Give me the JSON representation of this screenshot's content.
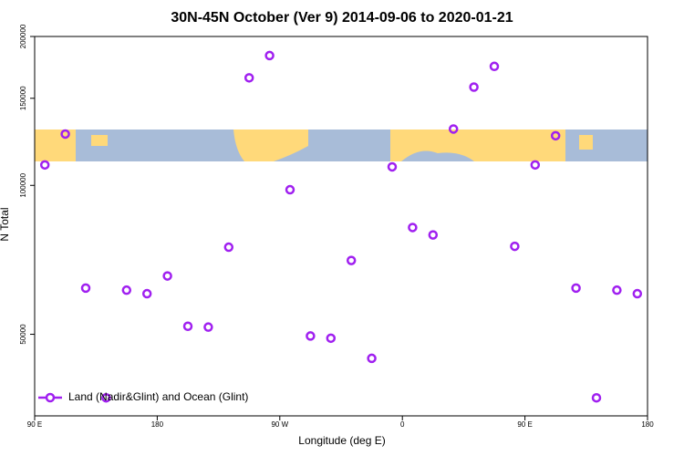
{
  "chart_data": {
    "type": "scatter",
    "title": "30N-45N October (Ver 9)   2014-09-06 to 2020-01-21",
    "x_label": "Longitude (deg E)",
    "y_label": "N Total",
    "series": [
      {
        "name": "Land (Nadir&Glint) and Ocean (Glint)",
        "color": "#a020f0",
        "x": [
          97.5,
          112.5,
          127.5,
          142.5,
          157.5,
          172.5,
          187.5,
          202.5,
          217.5,
          232.5,
          247.5,
          262.5,
          277.5,
          292.5,
          307.5,
          322.5,
          337.5,
          352.5,
          367.5,
          382.5,
          397.5,
          412.5,
          427.5,
          442.5,
          457.5,
          472.5,
          487.5,
          502.5,
          517.5,
          532.5
        ],
        "values": [
          110000,
          127000,
          62000,
          37200,
          61400,
          60400,
          65600,
          51900,
          51700,
          75000,
          165000,
          183000,
          98000,
          49600,
          49100,
          70500,
          44700,
          109000,
          82200,
          79400,
          130000,
          158000,
          174000,
          75300,
          110000,
          126000,
          62000,
          37200,
          61400,
          60400
        ]
      }
    ],
    "xlim": [
      90,
      540
    ],
    "xticks": [
      {
        "value": 90,
        "label": "90 E"
      },
      {
        "value": 180,
        "label": "180"
      },
      {
        "value": 270,
        "label": "90 W"
      },
      {
        "value": 360,
        "label": "0"
      },
      {
        "value": 450,
        "label": "90 E"
      },
      {
        "value": 540,
        "label": "180"
      }
    ],
    "ylim": [
      34200,
      200000
    ],
    "yticks": [
      50000,
      100000,
      150000,
      200000
    ],
    "log_y": true,
    "legend": "bottom-left"
  }
}
